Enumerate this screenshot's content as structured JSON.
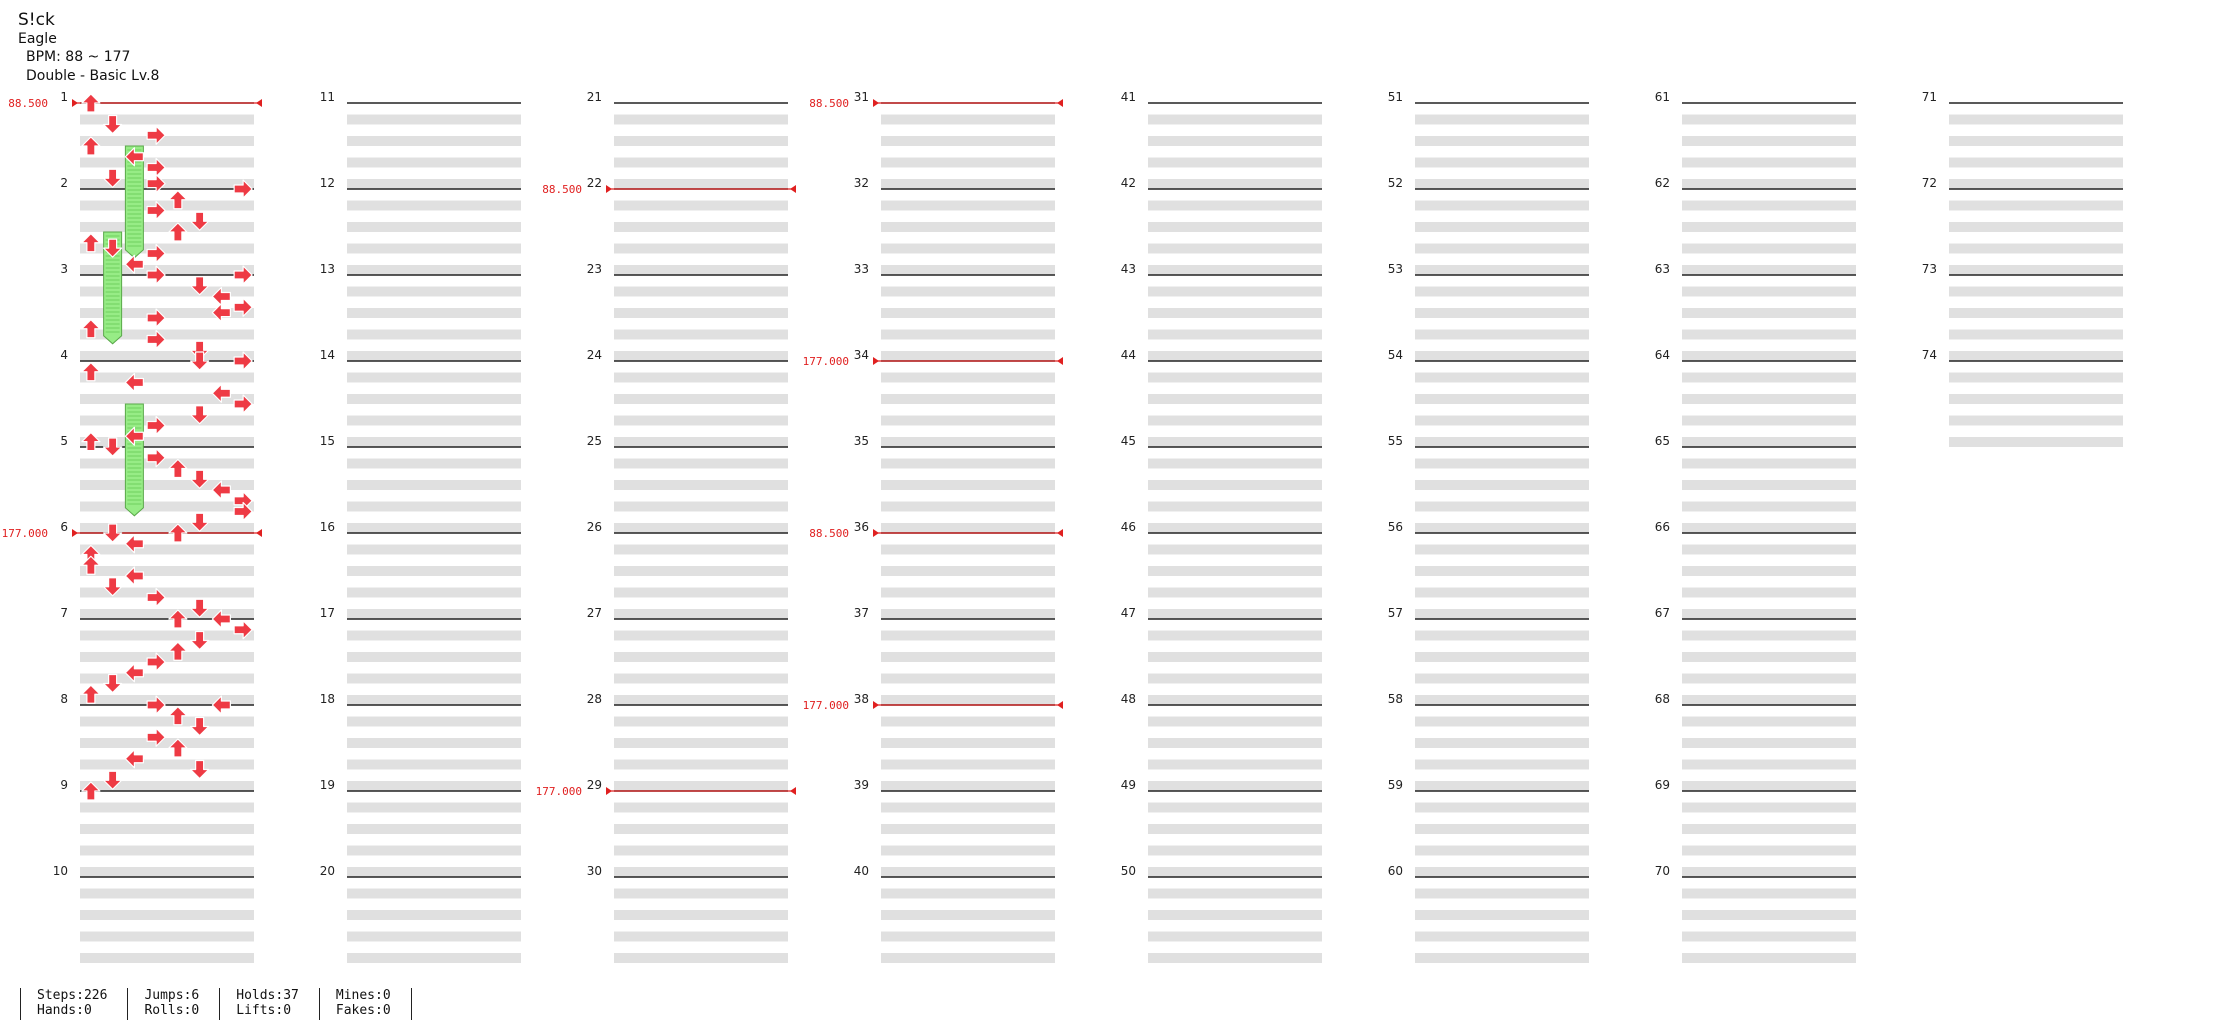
{
  "song": {
    "title": "S!ck",
    "artist": "Eagle",
    "bpm_label": "BPM: 88 ~ 177",
    "chart_label": "Double - Basic Lv.8"
  },
  "colors": {
    "arrow_red": "#ee3a44",
    "arrow_blue": "#2a5cf0",
    "hold_green": "#97ec86",
    "stripe": "#e0e0e0",
    "bpm_change": "#e02020"
  },
  "measures": [
    "1",
    "2",
    "3",
    "4",
    "5",
    "6",
    "7",
    "8",
    "9",
    "10",
    "11",
    "12",
    "13",
    "14",
    "15",
    "16",
    "17",
    "18",
    "19",
    "20",
    "21",
    "22",
    "23",
    "24",
    "25",
    "26",
    "27",
    "28",
    "29",
    "30",
    "31",
    "32",
    "33",
    "34",
    "35",
    "36",
    "37",
    "38",
    "39",
    "40",
    "41",
    "42",
    "43",
    "44",
    "45",
    "46",
    "47",
    "48",
    "49",
    "50",
    "51",
    "52",
    "53",
    "54",
    "55",
    "56",
    "57",
    "58",
    "59",
    "60",
    "61",
    "62",
    "63",
    "64",
    "65",
    "66",
    "67",
    "68",
    "69",
    "70",
    "71",
    "72",
    "73",
    "74"
  ],
  "bpm_changes": [
    {
      "measure": 1,
      "label": "88.500"
    },
    {
      "measure": 6,
      "label": "177.000"
    },
    {
      "measure": 22,
      "label": "88.500"
    },
    {
      "measure": 29,
      "label": "177.000"
    },
    {
      "measure": 31,
      "label": "88.500"
    },
    {
      "measure": 34,
      "label": "177.000"
    },
    {
      "measure": 36,
      "label": "88.500"
    },
    {
      "measure": 38,
      "label": "177.000"
    }
  ],
  "notes": [
    [
      1,
      0,
      0
    ],
    [
      1,
      4,
      1
    ],
    [
      1,
      6,
      3
    ],
    [
      1,
      8,
      0
    ],
    [
      1,
      10,
      2
    ],
    [
      1,
      12,
      3
    ],
    [
      1,
      14,
      1
    ],
    [
      1,
      15,
      3
    ],
    [
      2,
      0,
      7
    ],
    [
      2,
      2,
      4
    ],
    [
      2,
      4,
      3
    ],
    [
      2,
      6,
      5
    ],
    [
      2,
      8,
      4
    ],
    [
      2,
      10,
      0
    ],
    [
      2,
      11,
      1
    ],
    [
      2,
      12,
      3
    ],
    [
      2,
      14,
      2
    ],
    [
      2,
      16,
      7
    ],
    [
      3,
      0,
      3
    ],
    [
      3,
      2,
      5
    ],
    [
      3,
      4,
      6
    ],
    [
      3,
      6,
      7
    ],
    [
      3,
      7,
      6
    ],
    [
      3,
      8,
      3
    ],
    [
      3,
      10,
      0
    ],
    [
      3,
      12,
      3
    ],
    [
      3,
      14,
      5
    ],
    [
      3,
      16,
      7
    ],
    [
      4,
      0,
      5
    ],
    [
      4,
      2,
      0
    ],
    [
      4,
      4,
      2
    ],
    [
      4,
      6,
      6
    ],
    [
      4,
      8,
      7
    ],
    [
      4,
      10,
      5
    ],
    [
      4,
      12,
      3
    ],
    [
      4,
      14,
      2
    ],
    [
      4,
      15,
      0
    ],
    [
      4,
      16,
      1
    ],
    [
      5,
      0,
      1
    ],
    [
      5,
      2,
      3
    ],
    [
      5,
      4,
      4
    ],
    [
      5,
      6,
      5
    ],
    [
      5,
      8,
      6
    ],
    [
      5,
      10,
      7
    ],
    [
      5,
      12,
      7
    ],
    [
      5,
      14,
      5
    ],
    [
      5,
      16,
      4
    ],
    [
      6,
      0,
      1
    ],
    [
      6,
      2,
      2
    ],
    [
      6,
      4,
      0
    ],
    [
      6,
      6,
      0
    ],
    [
      6,
      8,
      2
    ],
    [
      6,
      10,
      1
    ],
    [
      6,
      12,
      3
    ],
    [
      6,
      14,
      5
    ],
    [
      6,
      16,
      4
    ],
    [
      7,
      0,
      6
    ],
    [
      7,
      2,
      7
    ],
    [
      7,
      4,
      5
    ],
    [
      7,
      6,
      4
    ],
    [
      7,
      8,
      3
    ],
    [
      7,
      10,
      2
    ],
    [
      7,
      12,
      1
    ],
    [
      7,
      14,
      0
    ],
    [
      7,
      16,
      6
    ],
    [
      8,
      0,
      3
    ],
    [
      8,
      2,
      4
    ],
    [
      8,
      4,
      5
    ],
    [
      8,
      6,
      3
    ],
    [
      8,
      8,
      4
    ],
    [
      8,
      10,
      2
    ],
    [
      8,
      12,
      5
    ],
    [
      8,
      14,
      1
    ],
    [
      8,
      16,
      0
    ]
  ],
  "holds": [
    [
      1,
      8,
      2
    ],
    [
      2,
      8,
      1
    ],
    [
      4,
      8,
      2
    ]
  ],
  "stats": [
    {
      "line1": "Steps:226",
      "line2": "Hands:0"
    },
    {
      "line1": "Jumps:6",
      "line2": "Rolls:0"
    },
    {
      "line1": "Holds:37",
      "line2": "Lifts:0"
    },
    {
      "line1": "Mines:0",
      "line2": "Fakes:0"
    }
  ]
}
